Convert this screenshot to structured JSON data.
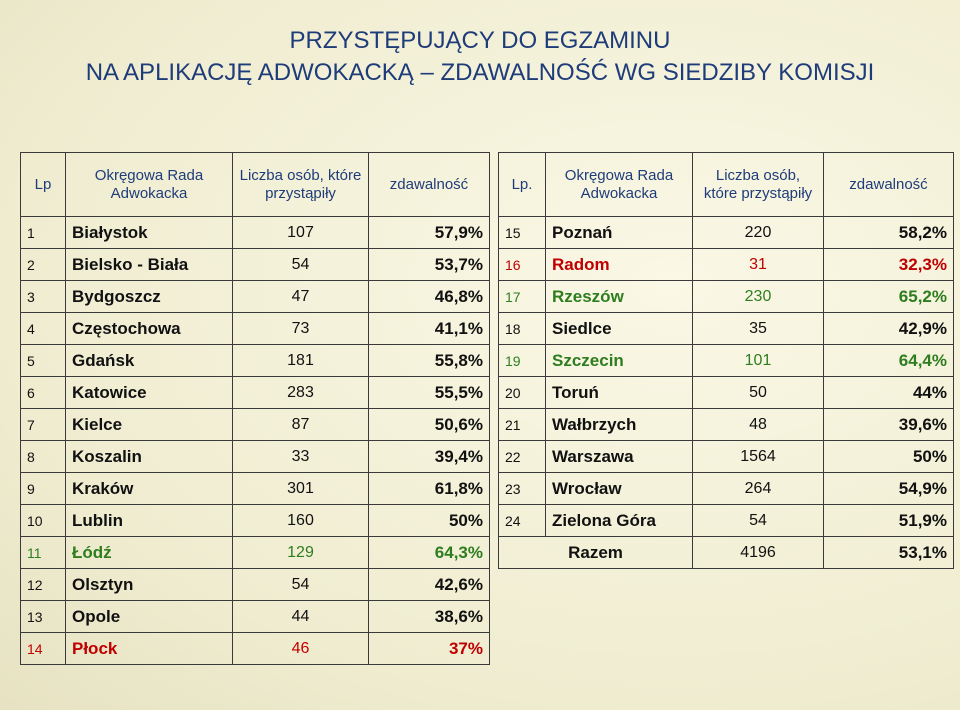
{
  "title": [
    "PRZYSTĘPUJĄCY DO EGZAMINU",
    "NA APLIKACJĘ ADWOKACKĄ – ZDAWALNOŚĆ WG SIEDZIBY KOMISJI"
  ],
  "left_table": {
    "header": [
      "Lp",
      "Okręgowa Rada Adwokacka",
      "Liczba osób, które przystąpiły",
      "zdawalność"
    ],
    "rows": [
      {
        "lp": 1,
        "name": "Białystok",
        "count": 107,
        "pct": "57,9%"
      },
      {
        "lp": 2,
        "name": "Bielsko - Biała",
        "count": 54,
        "pct": "53,7%"
      },
      {
        "lp": 3,
        "name": "Bydgoszcz",
        "count": 47,
        "pct": "46,8%"
      },
      {
        "lp": 4,
        "name": "Częstochowa",
        "count": 73,
        "pct": "41,1%"
      },
      {
        "lp": 5,
        "name": "Gdańsk",
        "count": 181,
        "pct": "55,8%"
      },
      {
        "lp": 6,
        "name": "Katowice",
        "count": 283,
        "pct": "55,5%"
      },
      {
        "lp": 7,
        "name": "Kielce",
        "count": 87,
        "pct": "50,6%"
      },
      {
        "lp": 8,
        "name": "Koszalin",
        "count": 33,
        "pct": "39,4%"
      },
      {
        "lp": 9,
        "name": "Kraków",
        "count": 301,
        "pct": "61,8%"
      },
      {
        "lp": 10,
        "name": "Lublin",
        "count": 160,
        "pct": "50%"
      },
      {
        "lp": 11,
        "name": "Łódź",
        "count": 129,
        "pct": "64,3%",
        "color": "#2e7d1f"
      },
      {
        "lp": 12,
        "name": "Olsztyn",
        "count": 54,
        "pct": "42,6%"
      },
      {
        "lp": 13,
        "name": "Opole",
        "count": 44,
        "pct": "38,6%"
      },
      {
        "lp": 14,
        "name": "Płock",
        "count": 46,
        "pct": "37%",
        "color": "#c00000"
      }
    ]
  },
  "right_table": {
    "header": [
      "Lp.",
      "Okręgowa Rada Adwokacka",
      "Liczba osób, które przystąpiły",
      "zdawalność"
    ],
    "rows": [
      {
        "lp": 15,
        "name": "Poznań",
        "count": 220,
        "pct": "58,2%"
      },
      {
        "lp": 16,
        "name": "Radom",
        "count": 31,
        "pct": "32,3%",
        "color": "#c00000"
      },
      {
        "lp": 17,
        "name": "Rzeszów",
        "count": 230,
        "pct": "65,2%",
        "color": "#2e7d1f"
      },
      {
        "lp": 18,
        "name": "Siedlce",
        "count": 35,
        "pct": "42,9%"
      },
      {
        "lp": 19,
        "name": "Szczecin",
        "count": 101,
        "pct": "64,4%",
        "color": "#2e7d1f"
      },
      {
        "lp": 20,
        "name": "Toruń",
        "count": 50,
        "pct": "44%"
      },
      {
        "lp": 21,
        "name": "Wałbrzych",
        "count": 48,
        "pct": "39,6%"
      },
      {
        "lp": 22,
        "name": "Warszawa",
        "count": 1564,
        "pct": "50%"
      },
      {
        "lp": 23,
        "name": "Wrocław",
        "count": 264,
        "pct": "54,9%"
      },
      {
        "lp": 24,
        "name": "Zielona Góra",
        "count": 54,
        "pct": "51,9%"
      }
    ],
    "total": {
      "label": "Razem",
      "count": 4196,
      "pct": "53,1%"
    }
  }
}
